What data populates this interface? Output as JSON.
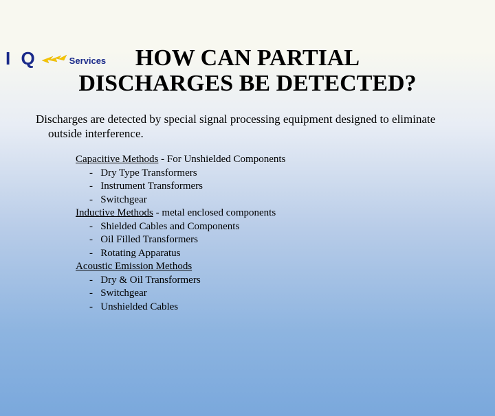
{
  "logo": {
    "iq": "I Q",
    "services": "Services",
    "bolt_color": "#f5c400",
    "text_color": "#1a2a8a"
  },
  "title": {
    "line1": "HOW CAN PARTIAL",
    "line2": "DISCHARGES BE DETECTED?",
    "fontsize": 34
  },
  "intro": {
    "text": "Discharges are detected by special signal processing equipment designed to eliminate outside interference.",
    "fontsize": 17
  },
  "methods_fontsize": 15,
  "methods": [
    {
      "header": "Capacitive Methods",
      "tail": " - For Unshielded Components",
      "items": [
        "Dry Type Transformers",
        "Instrument Transformers",
        "Switchgear"
      ]
    },
    {
      "header": "Inductive Methods",
      "tail": " - metal enclosed components",
      "items": [
        "Shielded Cables and Components",
        "Oil Filled Transformers",
        "Rotating Apparatus"
      ]
    },
    {
      "header": "Acoustic Emission Methods",
      "tail": "",
      "items": [
        "Dry & Oil Transformers",
        "Switchgear",
        "Unshielded Cables"
      ]
    }
  ]
}
